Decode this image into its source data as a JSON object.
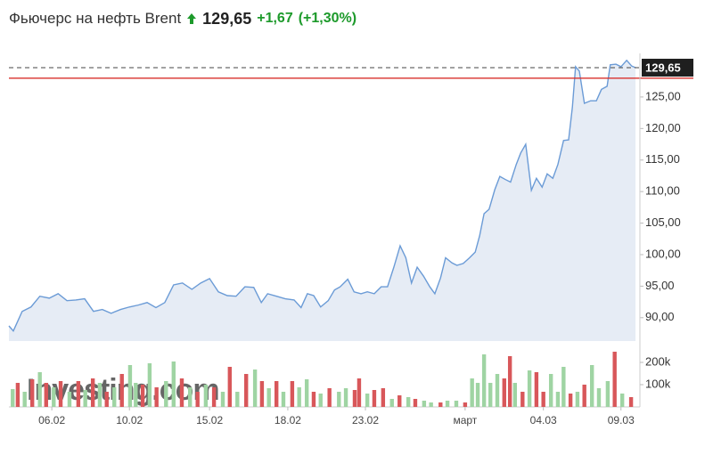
{
  "chart_data": {
    "type": "line",
    "title": "Фьючерс на нефть Brent",
    "price": 129.65,
    "change": 1.67,
    "change_pct": 1.3,
    "price_label": "129,65",
    "change_label": "+1,67",
    "change_pct_label": "(+1,30%)",
    "up_color": "#1d9a2b",
    "reference_color": "#d9302c",
    "color": "#6b9bd6",
    "fill_color": "#e6ecf5",
    "x": [
      0,
      0.7,
      2.1,
      3.5,
      4.9,
      6.4,
      7.8,
      9.2,
      10.6,
      12.0,
      13.4,
      14.8,
      16.2,
      17.7,
      19.1,
      20.5,
      21.9,
      23.3,
      24.7,
      26.1,
      27.5,
      29.0,
      30.4,
      31.8,
      33.2,
      34.6,
      36.0,
      37.4,
      38.8,
      40.0,
      41.0,
      42.4,
      43.8,
      45.2,
      46.3,
      47.3,
      48.3,
      49.4,
      50.6,
      51.6,
      52.5,
      53.7,
      54.7,
      55.8,
      56.8,
      57.9,
      59.0,
      60.0,
      61.0,
      62.0,
      62.9,
      63.8,
      64.7,
      65.7,
      66.7,
      67.5,
      68.4,
      69.2,
      70.2,
      71.0,
      72.0,
      73.0,
      73.9,
      74.6,
      75.3,
      76.1,
      77.0,
      77.8,
      78.7,
      79.5,
      80.4,
      81.1,
      81.9,
      82.8,
      83.6,
      84.5,
      85.3,
      86.2,
      87.0,
      87.9,
      88.7,
      89.3,
      89.8,
      90.4,
      91.2,
      92.2,
      93.1,
      93.9,
      94.8,
      95.3,
      96.2,
      97.0,
      97.9,
      98.7,
      99.3
    ],
    "values": [
      88.7,
      87.9,
      91.0,
      91.7,
      93.4,
      93.1,
      93.8,
      92.7,
      92.8,
      93.0,
      91.0,
      91.3,
      90.7,
      91.3,
      91.7,
      92.0,
      92.4,
      91.6,
      92.4,
      95.2,
      95.5,
      94.5,
      95.5,
      96.2,
      94.1,
      93.5,
      93.4,
      94.9,
      94.8,
      92.4,
      93.8,
      93.4,
      93.0,
      92.8,
      91.6,
      93.8,
      93.5,
      91.7,
      92.7,
      94.4,
      94.9,
      96.1,
      94.1,
      93.8,
      94.1,
      93.8,
      94.9,
      94.9,
      98.0,
      101.4,
      99.5,
      95.5,
      98.0,
      96.6,
      94.9,
      93.8,
      96.3,
      99.5,
      98.7,
      98.3,
      98.6,
      99.5,
      100.4,
      103.0,
      106.5,
      107.2,
      110.3,
      112.4,
      111.9,
      111.5,
      114.3,
      116.1,
      117.5,
      110.2,
      112.1,
      110.7,
      112.8,
      112.1,
      114.3,
      118.1,
      118.2,
      123.4,
      129.8,
      129.1,
      124.0,
      124.4,
      124.4,
      126.2,
      126.7,
      130.1,
      130.2,
      129.8,
      130.8,
      129.9,
      129.65
    ],
    "xlim": [
      0,
      100
    ],
    "xticks": [
      {
        "value": 6.8,
        "label": "06.02"
      },
      {
        "value": 19.1,
        "label": "10.02"
      },
      {
        "value": 31.8,
        "label": "15.02"
      },
      {
        "value": 44.2,
        "label": "18.02"
      },
      {
        "value": 56.5,
        "label": "23.02"
      },
      {
        "value": 72.3,
        "label": "март"
      },
      {
        "value": 84.7,
        "label": "04.03"
      },
      {
        "value": 97.0,
        "label": "09.03"
      }
    ],
    "ylim": [
      86.3,
      131.2
    ],
    "yticks": [
      {
        "value": 90,
        "label": "90,00"
      },
      {
        "value": 95,
        "label": "95,00"
      },
      {
        "value": 100,
        "label": "100,00"
      },
      {
        "value": 105,
        "label": "105,00"
      },
      {
        "value": 110,
        "label": "110,00"
      },
      {
        "value": 115,
        "label": "115,00"
      },
      {
        "value": 120,
        "label": "120,00"
      },
      {
        "value": 125,
        "label": "125,00"
      }
    ],
    "watermark": "Investing.com",
    "volume": {
      "x": [
        0.6,
        1.4,
        2.5,
        3.7,
        4.9,
        5.9,
        7.1,
        8.2,
        9.6,
        11.0,
        12.1,
        13.3,
        14.4,
        15.5,
        16.7,
        17.9,
        19.2,
        20.1,
        21.2,
        22.3,
        23.4,
        24.9,
        26.1,
        27.4,
        28.7,
        29.9,
        31.2,
        32.5,
        33.9,
        35.0,
        36.2,
        37.6,
        39.0,
        40.1,
        41.2,
        42.4,
        43.5,
        44.9,
        46.0,
        47.2,
        48.3,
        49.4,
        50.8,
        52.3,
        53.4,
        54.8,
        55.5,
        56.8,
        57.9,
        59.3,
        60.7,
        61.9,
        63.3,
        64.4,
        65.8,
        66.9,
        68.4,
        69.5,
        70.9,
        72.3,
        73.4,
        74.3,
        75.3,
        76.3,
        77.4,
        78.5,
        79.4,
        80.2,
        81.4,
        82.5,
        83.6,
        84.7,
        85.9,
        87.0,
        87.9,
        89.0,
        90.1,
        91.2,
        92.4,
        93.5,
        94.9,
        96.0,
        97.2,
        98.6
      ],
      "values": [
        80000,
        108000,
        68000,
        124000,
        156000,
        108000,
        88000,
        116000,
        68000,
        116000,
        76000,
        128000,
        108000,
        68000,
        88000,
        148000,
        188000,
        108000,
        100000,
        196000,
        88000,
        116000,
        204000,
        128000,
        88000,
        68000,
        100000,
        88000,
        68000,
        180000,
        68000,
        148000,
        168000,
        116000,
        84000,
        116000,
        68000,
        116000,
        88000,
        124000,
        68000,
        60000,
        84000,
        68000,
        84000,
        76000,
        128000,
        60000,
        76000,
        84000,
        36000,
        52000,
        44000,
        36000,
        28000,
        20000,
        20000,
        28000,
        28000,
        20000,
        128000,
        108000,
        236000,
        108000,
        148000,
        128000,
        228000,
        108000,
        68000,
        164000,
        156000,
        68000,
        148000,
        68000,
        180000,
        60000,
        68000,
        100000,
        188000,
        84000,
        116000,
        248000,
        60000,
        44000
      ],
      "directions": [
        "up",
        "down",
        "up",
        "down",
        "up",
        "down",
        "up",
        "down",
        "up",
        "down",
        "up",
        "down",
        "up",
        "down",
        "up",
        "down",
        "up",
        "up",
        "down",
        "up",
        "down",
        "up",
        "up",
        "down",
        "up",
        "down",
        "up",
        "down",
        "up",
        "down",
        "up",
        "down",
        "up",
        "down",
        "up",
        "down",
        "up",
        "down",
        "up",
        "up",
        "down",
        "up",
        "down",
        "up",
        "up",
        "down",
        "down",
        "up",
        "down",
        "down",
        "up",
        "down",
        "up",
        "down",
        "up",
        "up",
        "down",
        "up",
        "up",
        "down",
        "up",
        "up",
        "up",
        "up",
        "up",
        "down",
        "down",
        "up",
        "down",
        "up",
        "down",
        "down",
        "up",
        "up",
        "up",
        "down",
        "up",
        "down",
        "up",
        "up",
        "up",
        "down",
        "up",
        "down"
      ],
      "up_color": "#9fd4a3",
      "down_color": "#d8575a",
      "ylim": [
        0,
        260000
      ],
      "yticks": [
        {
          "value": 100000,
          "label": "100k"
        },
        {
          "value": 200000,
          "label": "200k"
        }
      ]
    }
  }
}
